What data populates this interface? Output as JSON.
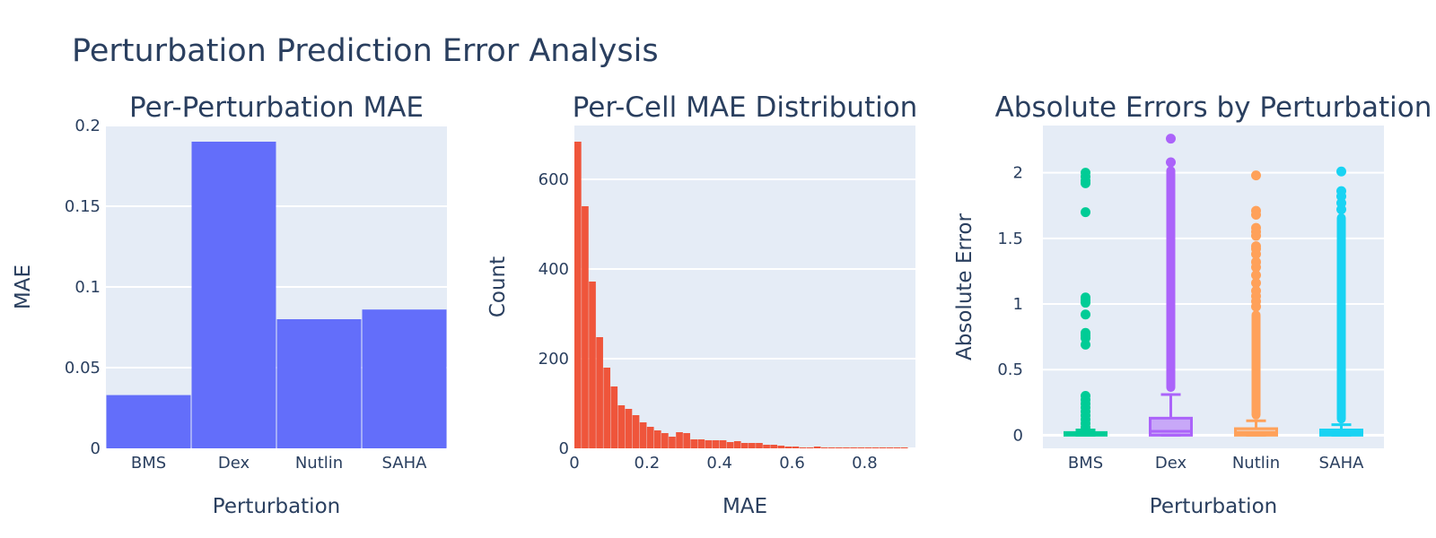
{
  "figure": {
    "title": "Perturbation Prediction Error Analysis"
  },
  "chart_data": [
    {
      "type": "bar",
      "title": "Per-Perturbation MAE",
      "xlabel": "Perturbation",
      "ylabel": "MAE",
      "categories": [
        "BMS",
        "Dex",
        "Nutlin",
        "SAHA"
      ],
      "values": [
        0.033,
        0.19,
        0.08,
        0.086
      ],
      "ylim": [
        0,
        0.2
      ],
      "yticks": [
        0,
        0.05,
        0.1,
        0.15,
        0.2
      ],
      "ytick_labels": [
        "0",
        "0.05",
        "0.1",
        "0.15",
        "0.2"
      ],
      "color": "#636efa",
      "grid": true
    },
    {
      "type": "bar",
      "subtype": "histogram",
      "title": "Per-Cell MAE Distribution",
      "xlabel": "MAE",
      "ylabel": "Count",
      "bin_width": 0.02,
      "bin_start": 0,
      "counts": [
        684,
        540,
        372,
        248,
        180,
        138,
        96,
        88,
        74,
        58,
        48,
        40,
        34,
        26,
        36,
        34,
        20,
        20,
        18,
        18,
        18,
        14,
        16,
        12,
        12,
        12,
        8,
        8,
        6,
        4,
        4,
        2,
        2,
        4,
        2,
        2,
        2,
        2,
        2,
        2,
        2,
        2,
        2,
        2,
        2,
        2
      ],
      "xlim": [
        0,
        0.94
      ],
      "ylim": [
        0,
        720
      ],
      "xticks": [
        0,
        0.2,
        0.4,
        0.6,
        0.8
      ],
      "xtick_labels": [
        "0",
        "0.2",
        "0.4",
        "0.6",
        "0.8"
      ],
      "yticks": [
        0,
        200,
        400,
        600
      ],
      "ytick_labels": [
        "0",
        "200",
        "400",
        "600"
      ],
      "color": "#ef553b",
      "grid": true
    },
    {
      "type": "box",
      "title": "Absolute Errors by Perturbation",
      "xlabel": "Perturbation",
      "ylabel": "Absolute Error",
      "categories": [
        "BMS",
        "Dex",
        "Nutlin",
        "SAHA"
      ],
      "ylim": [
        -0.1,
        2.36
      ],
      "yticks": [
        0,
        0.5,
        1,
        1.5,
        2
      ],
      "ytick_labels": [
        "0",
        "0.5",
        "1",
        "1.5",
        "2"
      ],
      "series": [
        {
          "name": "BMS",
          "color": "#00cc96",
          "q1": 0.0,
          "median": 0.005,
          "q3": 0.015,
          "whisker_low": 0,
          "whisker_high": 0.04,
          "outliers": [
            2.0,
            1.97,
            1.94,
            1.92,
            1.7,
            1.05,
            1.03,
            1.01,
            0.92,
            0.78,
            0.76,
            0.74,
            0.69,
            0.3,
            0.27,
            0.24,
            0.21,
            0.18,
            0.15,
            0.12,
            0.09,
            0.06
          ],
          "outlier_bands": []
        },
        {
          "name": "Dex",
          "color": "#ab63fa",
          "q1": 0.0,
          "median": 0.03,
          "q3": 0.13,
          "whisker_low": 0,
          "whisker_high": 0.31,
          "outliers": [
            2.26,
            2.08
          ],
          "outlier_bands": [
            [
              0.33,
              2.05
            ]
          ]
        },
        {
          "name": "Nutlin",
          "color": "#ffa15a",
          "q1": 0.0,
          "median": 0.02,
          "q3": 0.05,
          "whisker_low": 0,
          "whisker_high": 0.11,
          "outliers": [
            1.98,
            1.71,
            1.68,
            1.58,
            1.55,
            1.52,
            1.44,
            1.42,
            1.38,
            1.32,
            1.28,
            1.22,
            1.16,
            1.1,
            1.06,
            1.02,
            0.98
          ],
          "outlier_bands": [
            [
              0.12,
              0.95
            ]
          ]
        },
        {
          "name": "SAHA",
          "color": "#19d3f3",
          "q1": 0.0,
          "median": 0.02,
          "q3": 0.04,
          "whisker_low": 0,
          "whisker_high": 0.08,
          "outliers": [
            2.01,
            1.86,
            1.82,
            1.77,
            1.72
          ],
          "outlier_bands": [
            [
              0.09,
              1.69
            ]
          ]
        }
      ],
      "grid": true
    }
  ]
}
